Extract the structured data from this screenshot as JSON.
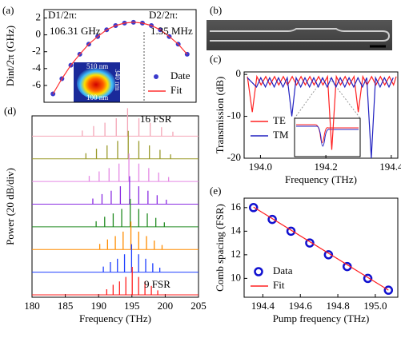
{
  "chart_data": [
    {
      "type": "scatter",
      "label": "(a)",
      "ylabel": "Dint/2π (GHz)",
      "annotations": [
        "D1/2π:",
        "106.31 GHz",
        "D2/2π:",
        "1.35 MHz"
      ],
      "inset_labels": [
        "510 nm",
        "340 nm",
        "100 nm"
      ],
      "xlim": [
        -60,
        25
      ],
      "ylim": [
        -8,
        3
      ],
      "yticks": [
        2,
        0,
        -2,
        -4,
        -6
      ],
      "legend": "lower right",
      "series": [
        {
          "name": "Date",
          "color": "#3a3acc",
          "marker": "dot",
          "x": [
            -55,
            -50,
            -45,
            -40,
            -35,
            -30,
            -25,
            -20,
            -15,
            -10,
            -5,
            0,
            5,
            10,
            15,
            20
          ],
          "values": [
            -7.0,
            -5.2,
            -3.6,
            -2.3,
            -1.1,
            -0.2,
            0.6,
            1.1,
            1.4,
            1.5,
            1.4,
            1.1,
            0.6,
            -0.2,
            -1.1,
            -2.3
          ]
        },
        {
          "name": "Fit",
          "color": "#ff3030",
          "x": [
            -55,
            -50,
            -45,
            -40,
            -35,
            -30,
            -25,
            -20,
            -15,
            -10,
            -5,
            0,
            5,
            10,
            15,
            20
          ],
          "values": [
            -7.0,
            -5.2,
            -3.6,
            -2.3,
            -1.1,
            -0.2,
            0.6,
            1.1,
            1.4,
            1.5,
            1.4,
            1.1,
            0.6,
            -0.2,
            -1.1,
            -2.3
          ]
        }
      ]
    },
    {
      "type": "line",
      "label": "(c)",
      "xlabel": "Frequency (THz)",
      "ylabel": "Transmission (dB)",
      "xlim": [
        193.95,
        194.42
      ],
      "ylim": [
        -20,
        0.6
      ],
      "xticks": [
        {
          "value": 194,
          "label": "194.0"
        },
        194.2,
        194.4
      ],
      "yticks": [
        0,
        -10,
        -20
      ],
      "legend": "lower left",
      "series": [
        {
          "name": "TE",
          "color": "#ff2020",
          "x": [
            193.96,
            193.975,
            193.989,
            194.002,
            194.016,
            194.029,
            194.043,
            194.056,
            194.07,
            194.083,
            194.097,
            194.11,
            194.124,
            194.137,
            194.151,
            194.164,
            194.178,
            194.191,
            194.205,
            194.218,
            194.232,
            194.245,
            194.259,
            194.272,
            194.286,
            194.299,
            194.313,
            194.326,
            194.34,
            194.353,
            194.367,
            194.38,
            194.394,
            194.407,
            194.415
          ],
          "values": [
            -0.5,
            -9,
            -0.5,
            -2.5,
            -0.5,
            -2.5,
            -0.5,
            -2.5,
            -0.5,
            -2.5,
            -0.5,
            -2.5,
            -0.5,
            -2.5,
            -0.5,
            -2.5,
            -0.5,
            -2.5,
            -0.5,
            -18,
            -0.5,
            -2.5,
            -0.5,
            -2.5,
            -0.5,
            -9,
            -0.5,
            -2.5,
            -0.5,
            -2.5,
            -0.5,
            -2.5,
            -0.5,
            -2.5,
            -0.5
          ]
        },
        {
          "name": "TM",
          "color": "#2020c0",
          "x": [
            193.96,
            193.988,
            194.001,
            194.015,
            194.028,
            194.042,
            194.055,
            194.069,
            194.082,
            194.096,
            194.109,
            194.123,
            194.136,
            194.15,
            194.163,
            194.177,
            194.19,
            194.204,
            194.217,
            194.231,
            194.244,
            194.258,
            194.271,
            194.285,
            194.298,
            194.312,
            194.325,
            194.339,
            194.352,
            194.366,
            194.379,
            194.393,
            194.406
          ],
          "values": [
            -0.8,
            -3,
            -0.8,
            -3,
            -0.8,
            -3,
            -0.8,
            -3,
            -0.8,
            -10,
            -0.8,
            -3,
            -0.8,
            -3,
            -0.8,
            -3,
            -0.8,
            -3,
            -0.8,
            -3,
            -0.8,
            -3,
            -0.8,
            -3,
            -0.8,
            -3,
            -0.8,
            -20,
            -0.8,
            -3,
            -0.8,
            -3,
            -0.8
          ]
        }
      ]
    },
    {
      "type": "spectra",
      "label": "(d)",
      "xlabel": "Frequency (THz)",
      "ylabel": "Power (20 dB/div)",
      "annotations": [
        "16 FSR",
        "9 FSR"
      ],
      "xlim": [
        180,
        205
      ],
      "xticks": [
        180,
        185,
        190,
        195,
        200,
        205
      ],
      "series": [
        {
          "color": "#f4a6b7",
          "x": [
            187.55,
            189.25,
            190.95,
            192.65,
            194.35,
            196.05,
            197.75,
            199.45,
            201.15
          ],
          "values": [
            -40,
            -32,
            -26,
            -18,
            0,
            -18,
            -26,
            -34,
            -42
          ]
        },
        {
          "color": "#9a9a2a",
          "x": [
            188.09,
            189.68,
            191.27,
            192.86,
            194.45,
            196.04,
            197.63,
            199.22,
            200.81
          ],
          "values": [
            -40,
            -32,
            -26,
            -18,
            0,
            -18,
            -26,
            -34,
            -42
          ]
        },
        {
          "color": "#e58ae5",
          "x": [
            188.59,
            190.08,
            191.57,
            193.06,
            194.55,
            196.04,
            197.53,
            199.02,
            200.51
          ],
          "values": [
            -40,
            -32,
            -26,
            -18,
            0,
            -18,
            -26,
            -34,
            -42
          ]
        },
        {
          "color": "#8a2be2",
          "x": [
            189.13,
            190.51,
            191.89,
            193.27,
            194.65,
            196.03,
            197.41,
            198.79,
            200.17
          ],
          "values": [
            -40,
            -32,
            -26,
            -18,
            0,
            -18,
            -26,
            -34,
            -42
          ]
        },
        {
          "color": "#228b22",
          "x": [
            189.63,
            190.91,
            192.19,
            193.47,
            194.75,
            196.03,
            197.31,
            198.59,
            199.87
          ],
          "values": [
            -40,
            -32,
            -26,
            -18,
            0,
            -18,
            -26,
            -34,
            -42
          ]
        },
        {
          "color": "#ff8c00",
          "x": [
            190.17,
            191.34,
            192.51,
            193.68,
            194.85,
            196.02,
            197.19,
            198.36,
            199.53
          ],
          "values": [
            -40,
            -32,
            -26,
            -18,
            0,
            -18,
            -26,
            -34,
            -42
          ]
        },
        {
          "color": "#1f3fff",
          "x": [
            190.71,
            191.77,
            192.83,
            193.89,
            194.95,
            196.01,
            197.07,
            198.13,
            199.19
          ],
          "values": [
            -40,
            -32,
            -26,
            -18,
            0,
            -18,
            -26,
            -34,
            -42
          ]
        },
        {
          "color": "#ff2020",
          "x": [
            191.22,
            192.18,
            193.14,
            194.09,
            195.05,
            196.01,
            196.96,
            197.92,
            198.88
          ],
          "values": [
            -40,
            -32,
            -26,
            -18,
            0,
            -18,
            -26,
            -34,
            -42
          ]
        }
      ]
    },
    {
      "type": "scatter",
      "label": "(e)",
      "xlabel": "Pump frequency (THz)",
      "ylabel": "Comb spacing (FSR)",
      "xlim": [
        194.3,
        195.12
      ],
      "ylim": [
        8.4,
        16.8
      ],
      "xticks": [
        194.4,
        194.6,
        194.8,
        {
          "value": 195,
          "label": "195.0"
        }
      ],
      "yticks": [
        10,
        12,
        14,
        16
      ],
      "legend": "lower left",
      "series": [
        {
          "name": "Data",
          "color": "#1010d0",
          "marker": "open",
          "x": [
            194.35,
            194.45,
            194.55,
            194.65,
            194.75,
            194.85,
            194.96,
            195.07
          ],
          "values": [
            16,
            15,
            14,
            13,
            12,
            11,
            10,
            9
          ]
        },
        {
          "name": "Fit",
          "color": "#ff2020",
          "x": [
            194.35,
            195.07
          ],
          "values": [
            16.05,
            9
          ]
        }
      ]
    }
  ],
  "image_panel": {
    "label": "(b)"
  }
}
